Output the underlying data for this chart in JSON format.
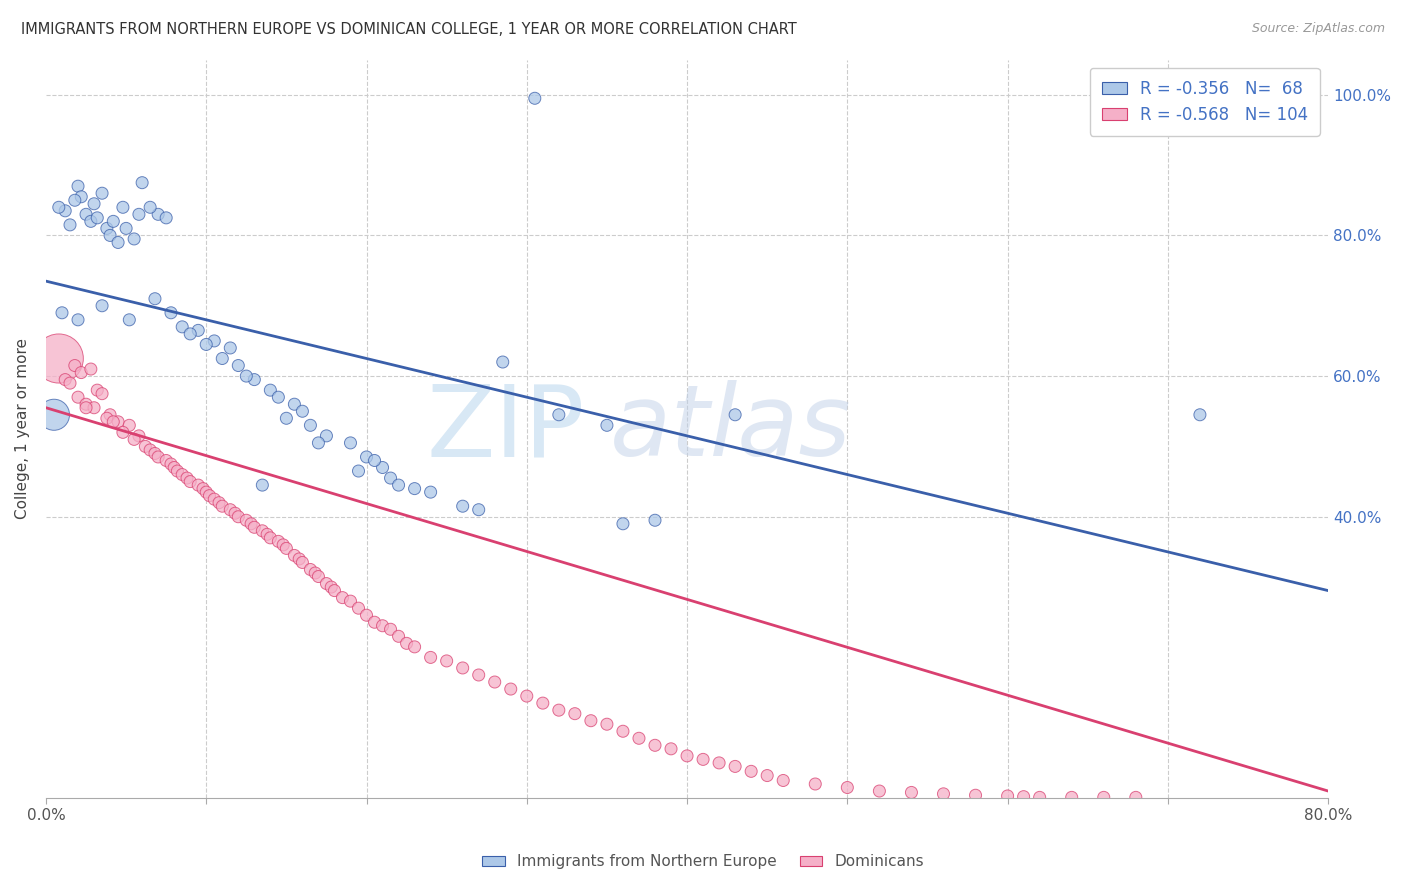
{
  "title": "IMMIGRANTS FROM NORTHERN EUROPE VS DOMINICAN COLLEGE, 1 YEAR OR MORE CORRELATION CHART",
  "source": "Source: ZipAtlas.com",
  "ylabel": "College, 1 year or more",
  "xlim": [
    0.0,
    0.8
  ],
  "ylim": [
    0.0,
    1.05
  ],
  "blue_R": -0.356,
  "blue_N": 68,
  "pink_R": -0.568,
  "pink_N": 104,
  "blue_color": "#adc8e8",
  "pink_color": "#f5b0c8",
  "blue_line_color": "#3a5faa",
  "pink_line_color": "#d94070",
  "legend_label_blue": "Immigrants from Northern Europe",
  "legend_label_pink": "Dominicans",
  "watermark_zip": "ZIP",
  "watermark_atlas": "atlas",
  "blue_line_x": [
    0.0,
    0.8
  ],
  "blue_line_y": [
    0.735,
    0.295
  ],
  "pink_line_x": [
    0.0,
    0.8
  ],
  "pink_line_y": [
    0.555,
    0.01
  ],
  "blue_x": [
    0.305,
    0.02,
    0.035,
    0.06,
    0.048,
    0.022,
    0.03,
    0.018,
    0.025,
    0.012,
    0.028,
    0.015,
    0.038,
    0.032,
    0.008,
    0.04,
    0.045,
    0.055,
    0.07,
    0.065,
    0.05,
    0.042,
    0.058,
    0.075,
    0.01,
    0.02,
    0.035,
    0.052,
    0.068,
    0.078,
    0.085,
    0.095,
    0.09,
    0.105,
    0.1,
    0.115,
    0.11,
    0.12,
    0.13,
    0.125,
    0.14,
    0.145,
    0.155,
    0.16,
    0.15,
    0.165,
    0.175,
    0.17,
    0.19,
    0.2,
    0.21,
    0.205,
    0.195,
    0.215,
    0.22,
    0.23,
    0.24,
    0.26,
    0.27,
    0.285,
    0.32,
    0.35,
    0.36,
    0.38,
    0.43,
    0.72,
    0.005,
    0.135
  ],
  "blue_y": [
    0.995,
    0.87,
    0.86,
    0.875,
    0.84,
    0.855,
    0.845,
    0.85,
    0.83,
    0.835,
    0.82,
    0.815,
    0.81,
    0.825,
    0.84,
    0.8,
    0.79,
    0.795,
    0.83,
    0.84,
    0.81,
    0.82,
    0.83,
    0.825,
    0.69,
    0.68,
    0.7,
    0.68,
    0.71,
    0.69,
    0.67,
    0.665,
    0.66,
    0.65,
    0.645,
    0.64,
    0.625,
    0.615,
    0.595,
    0.6,
    0.58,
    0.57,
    0.56,
    0.55,
    0.54,
    0.53,
    0.515,
    0.505,
    0.505,
    0.485,
    0.47,
    0.48,
    0.465,
    0.455,
    0.445,
    0.44,
    0.435,
    0.415,
    0.41,
    0.62,
    0.545,
    0.53,
    0.39,
    0.395,
    0.545,
    0.545,
    0.545,
    0.445
  ],
  "blue_sizes": [
    30,
    30,
    30,
    30,
    30,
    30,
    30,
    30,
    30,
    30,
    30,
    30,
    30,
    30,
    30,
    30,
    30,
    30,
    30,
    30,
    30,
    30,
    30,
    30,
    30,
    30,
    30,
    30,
    30,
    30,
    30,
    30,
    30,
    30,
    30,
    30,
    30,
    30,
    30,
    30,
    30,
    30,
    30,
    30,
    30,
    30,
    30,
    30,
    30,
    30,
    30,
    30,
    30,
    30,
    30,
    30,
    30,
    30,
    30,
    30,
    30,
    30,
    30,
    30,
    30,
    30,
    200,
    30
  ],
  "pink_x": [
    0.008,
    0.018,
    0.022,
    0.012,
    0.028,
    0.015,
    0.032,
    0.035,
    0.02,
    0.025,
    0.03,
    0.04,
    0.038,
    0.045,
    0.052,
    0.048,
    0.058,
    0.055,
    0.062,
    0.065,
    0.068,
    0.07,
    0.075,
    0.078,
    0.08,
    0.082,
    0.085,
    0.088,
    0.09,
    0.095,
    0.098,
    0.1,
    0.102,
    0.105,
    0.108,
    0.11,
    0.115,
    0.118,
    0.12,
    0.125,
    0.128,
    0.13,
    0.135,
    0.138,
    0.14,
    0.145,
    0.148,
    0.15,
    0.155,
    0.158,
    0.16,
    0.165,
    0.168,
    0.17,
    0.175,
    0.178,
    0.18,
    0.185,
    0.19,
    0.195,
    0.2,
    0.205,
    0.21,
    0.215,
    0.22,
    0.225,
    0.23,
    0.24,
    0.25,
    0.26,
    0.27,
    0.28,
    0.29,
    0.3,
    0.31,
    0.32,
    0.33,
    0.34,
    0.35,
    0.36,
    0.37,
    0.38,
    0.39,
    0.4,
    0.41,
    0.42,
    0.43,
    0.44,
    0.45,
    0.46,
    0.48,
    0.5,
    0.52,
    0.54,
    0.56,
    0.58,
    0.6,
    0.61,
    0.62,
    0.64,
    0.66,
    0.68,
    0.025,
    0.042
  ],
  "pink_y": [
    0.625,
    0.615,
    0.605,
    0.595,
    0.61,
    0.59,
    0.58,
    0.575,
    0.57,
    0.56,
    0.555,
    0.545,
    0.54,
    0.535,
    0.53,
    0.52,
    0.515,
    0.51,
    0.5,
    0.495,
    0.49,
    0.485,
    0.48,
    0.475,
    0.47,
    0.465,
    0.46,
    0.455,
    0.45,
    0.445,
    0.44,
    0.435,
    0.43,
    0.425,
    0.42,
    0.415,
    0.41,
    0.405,
    0.4,
    0.395,
    0.39,
    0.385,
    0.38,
    0.375,
    0.37,
    0.365,
    0.36,
    0.355,
    0.345,
    0.34,
    0.335,
    0.325,
    0.32,
    0.315,
    0.305,
    0.3,
    0.295,
    0.285,
    0.28,
    0.27,
    0.26,
    0.25,
    0.245,
    0.24,
    0.23,
    0.22,
    0.215,
    0.2,
    0.195,
    0.185,
    0.175,
    0.165,
    0.155,
    0.145,
    0.135,
    0.125,
    0.12,
    0.11,
    0.105,
    0.095,
    0.085,
    0.075,
    0.07,
    0.06,
    0.055,
    0.05,
    0.045,
    0.038,
    0.032,
    0.025,
    0.02,
    0.015,
    0.01,
    0.008,
    0.006,
    0.004,
    0.003,
    0.002,
    0.001,
    0.001,
    0.001,
    0.001,
    0.555,
    0.535
  ],
  "pink_sizes": [
    500,
    30,
    30,
    30,
    30,
    30,
    30,
    30,
    30,
    30,
    30,
    30,
    30,
    30,
    30,
    30,
    30,
    30,
    30,
    30,
    30,
    30,
    30,
    30,
    30,
    30,
    30,
    30,
    30,
    30,
    30,
    30,
    30,
    30,
    30,
    30,
    30,
    30,
    30,
    30,
    30,
    30,
    30,
    30,
    30,
    30,
    30,
    30,
    30,
    30,
    30,
    30,
    30,
    30,
    30,
    30,
    30,
    30,
    30,
    30,
    30,
    30,
    30,
    30,
    30,
    30,
    30,
    30,
    30,
    30,
    30,
    30,
    30,
    30,
    30,
    30,
    30,
    30,
    30,
    30,
    30,
    30,
    30,
    30,
    30,
    30,
    30,
    30,
    30,
    30,
    30,
    30,
    30,
    30,
    30,
    30,
    30,
    30,
    30,
    30,
    30,
    30,
    30,
    30
  ]
}
